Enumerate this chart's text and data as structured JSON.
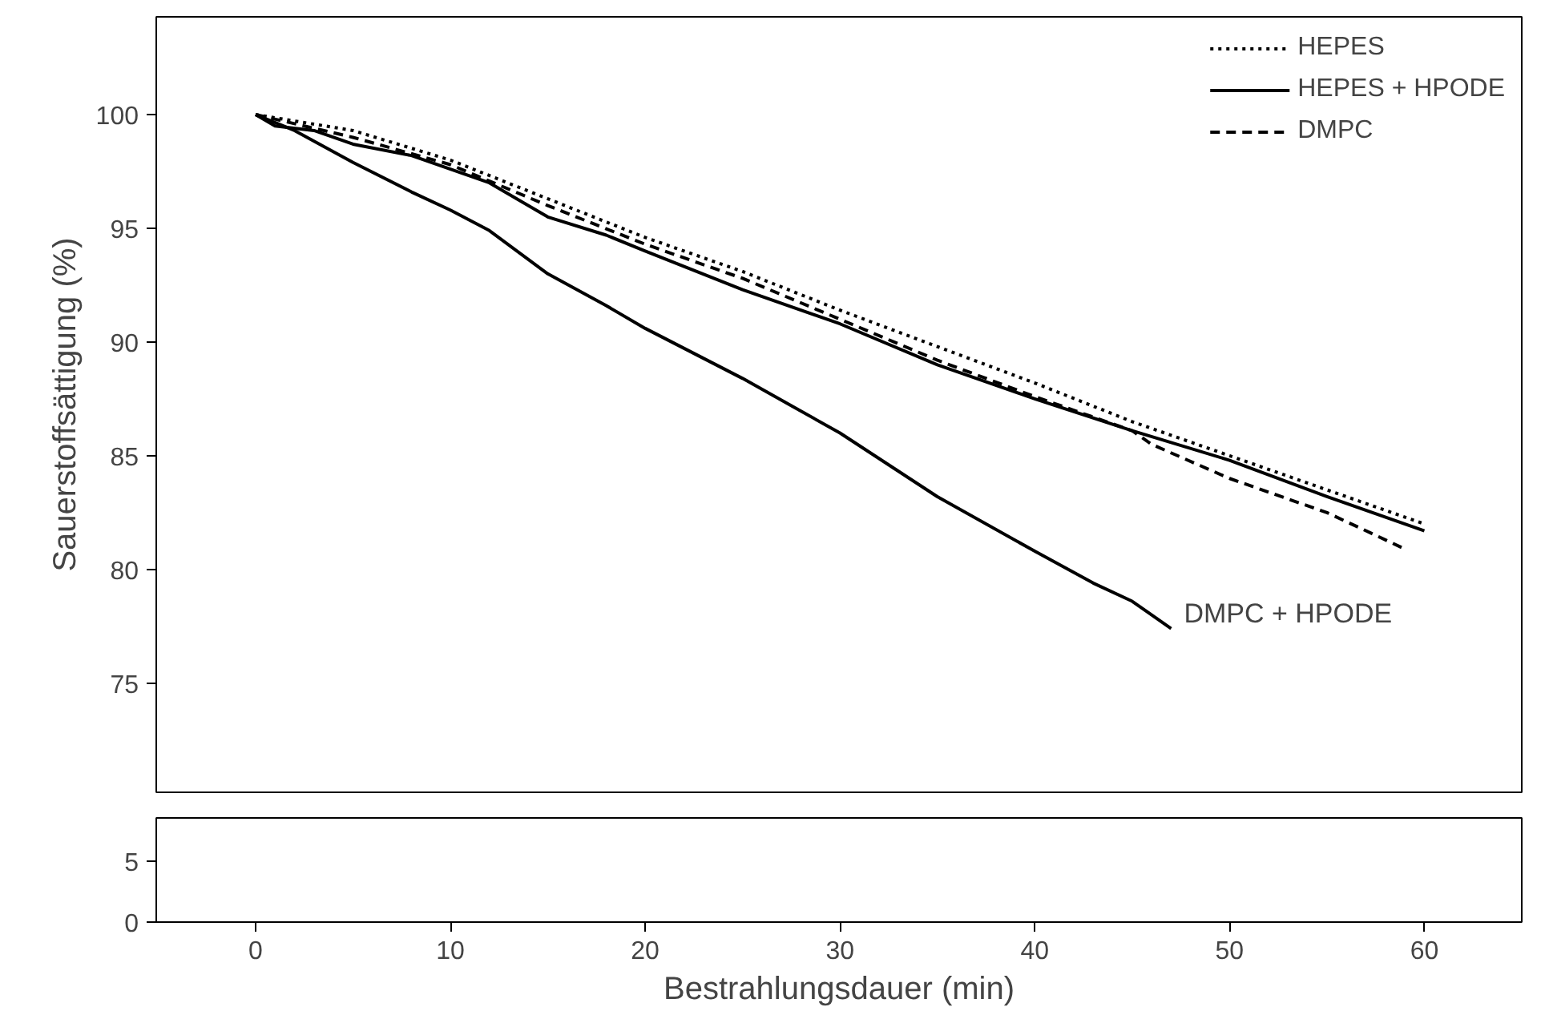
{
  "chart_data": [
    {
      "type": "line",
      "ylabel": "Sauerstoffsättigung (%)",
      "xlim": [
        -5.1,
        65
      ],
      "xticks": [
        0,
        10,
        20,
        30,
        40,
        50,
        60
      ],
      "ylim": [
        70.2,
        104.3
      ],
      "yticks": [
        75,
        80,
        85,
        90,
        95,
        100
      ],
      "tick_labels": "y",
      "legend": "top right",
      "grid": false,
      "series": [
        {
          "name": "HEPES",
          "color": "#000000",
          "line_style": "dotted",
          "x": [
            0,
            5,
            10,
            15,
            20,
            25,
            30,
            35,
            40,
            45,
            50,
            55,
            60
          ],
          "values": [
            100,
            99.3,
            98,
            96.3,
            94.6,
            93.1,
            91.4,
            89.8,
            88.2,
            86.5,
            85,
            83.5,
            82
          ]
        },
        {
          "name": "HEPES + HPODE",
          "color": "#000000",
          "line_style": "solid",
          "x": [
            0,
            1,
            3,
            5,
            8,
            10,
            12,
            15,
            18,
            20,
            25,
            30,
            35,
            40,
            45,
            50,
            55,
            60
          ],
          "values": [
            100,
            99.5,
            99.3,
            98.7,
            98.2,
            97.6,
            97,
            95.5,
            94.7,
            94,
            92.3,
            90.8,
            89,
            87.5,
            86.1,
            84.8,
            83.2,
            81.7
          ]
        },
        {
          "name": "DMPC",
          "color": "#000000",
          "line_style": "dashed",
          "x": [
            0,
            5,
            10,
            15,
            20,
            25,
            30,
            35,
            40,
            45,
            46,
            50,
            55,
            59
          ],
          "values": [
            100,
            99,
            97.8,
            96,
            94.3,
            92.8,
            91,
            89.2,
            87.6,
            86.1,
            85.5,
            84,
            82.5,
            80.9
          ]
        },
        {
          "color": "#000000",
          "line_style": "solid",
          "x": [
            0,
            2,
            5,
            8,
            10,
            12,
            15,
            18,
            20,
            25,
            30,
            35,
            40,
            43,
            45,
            47
          ],
          "values": [
            100,
            99.3,
            97.9,
            96.6,
            95.8,
            94.9,
            93,
            91.6,
            90.6,
            88.4,
            86,
            83.2,
            80.8,
            79.4,
            78.6,
            77.4
          ]
        }
      ],
      "annotations": [
        {
          "text": "DMPC + HPODE",
          "x": 47,
          "y": 77.4
        }
      ]
    },
    {
      "type": "line",
      "xlabel": "Bestrahlungsdauer (min)",
      "xlim": [
        -5.1,
        65
      ],
      "xticks": [
        0,
        10,
        20,
        30,
        40,
        50,
        60
      ],
      "ylim": [
        0,
        8.6
      ],
      "yticks": [
        0,
        5
      ],
      "grid": false
    }
  ]
}
